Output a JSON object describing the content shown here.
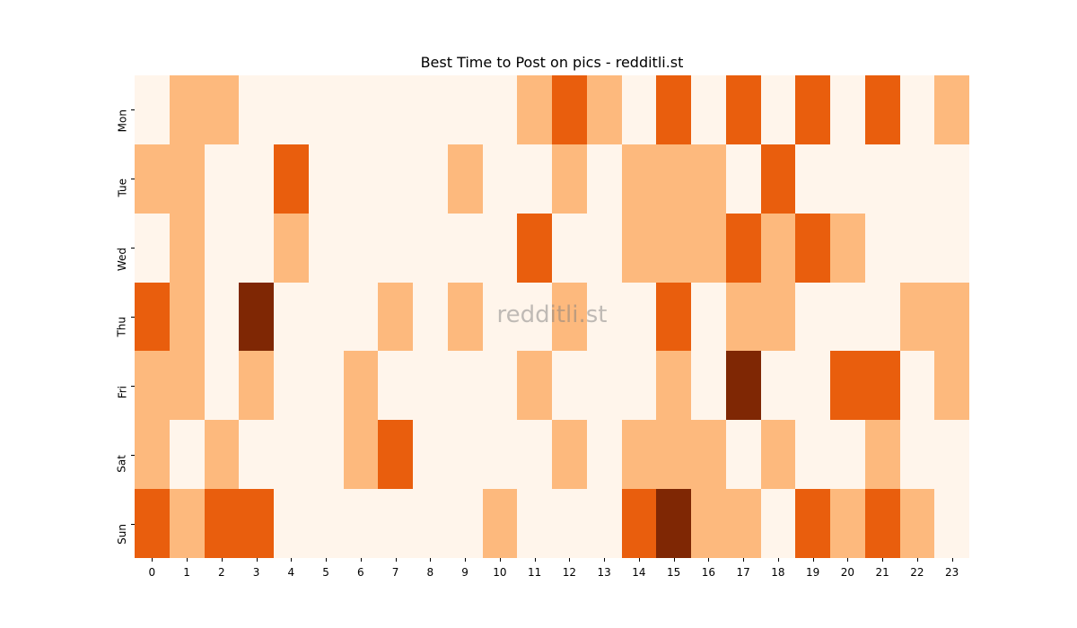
{
  "chart_data": {
    "type": "heatmap",
    "title": "Best Time to Post on pics - redditli.st",
    "xlabel": "",
    "ylabel": "",
    "x": [
      "0",
      "1",
      "2",
      "3",
      "4",
      "5",
      "6",
      "7",
      "8",
      "9",
      "10",
      "11",
      "12",
      "13",
      "14",
      "15",
      "16",
      "17",
      "18",
      "19",
      "20",
      "21",
      "22",
      "23"
    ],
    "y": [
      "Mon",
      "Tue",
      "Wed",
      "Thu",
      "Fri",
      "Sat",
      "Sun"
    ],
    "colormap": "Oranges",
    "levels": {
      "0": "#fff5eb",
      "1": "#fdb97d",
      "2": "#e95e0d",
      "3": "#7f2704"
    },
    "values": [
      [
        0,
        1,
        1,
        0,
        0,
        0,
        0,
        0,
        0,
        0,
        0,
        1,
        2,
        1,
        0,
        2,
        0,
        2,
        0,
        2,
        0,
        2,
        0,
        1
      ],
      [
        1,
        1,
        0,
        0,
        2,
        0,
        0,
        0,
        0,
        1,
        0,
        0,
        1,
        0,
        1,
        1,
        1,
        0,
        2,
        0,
        0,
        0,
        0,
        0
      ],
      [
        0,
        1,
        0,
        0,
        1,
        0,
        0,
        0,
        0,
        0,
        0,
        2,
        0,
        0,
        1,
        1,
        1,
        2,
        1,
        2,
        1,
        0,
        0,
        0
      ],
      [
        2,
        1,
        0,
        3,
        0,
        0,
        0,
        1,
        0,
        1,
        0,
        0,
        1,
        0,
        0,
        2,
        0,
        1,
        1,
        0,
        0,
        0,
        1,
        1
      ],
      [
        1,
        1,
        0,
        1,
        0,
        0,
        1,
        0,
        0,
        0,
        0,
        1,
        0,
        0,
        0,
        1,
        0,
        3,
        0,
        0,
        2,
        2,
        0,
        1
      ],
      [
        1,
        0,
        1,
        0,
        0,
        0,
        1,
        2,
        0,
        0,
        0,
        0,
        1,
        0,
        1,
        1,
        1,
        0,
        1,
        0,
        0,
        1,
        0,
        0
      ],
      [
        2,
        1,
        2,
        2,
        0,
        0,
        0,
        0,
        0,
        0,
        1,
        0,
        0,
        0,
        2,
        3,
        1,
        1,
        0,
        2,
        1,
        2,
        1,
        0
      ]
    ],
    "colorbar": false,
    "grid": false
  },
  "watermark": "redditli.st"
}
